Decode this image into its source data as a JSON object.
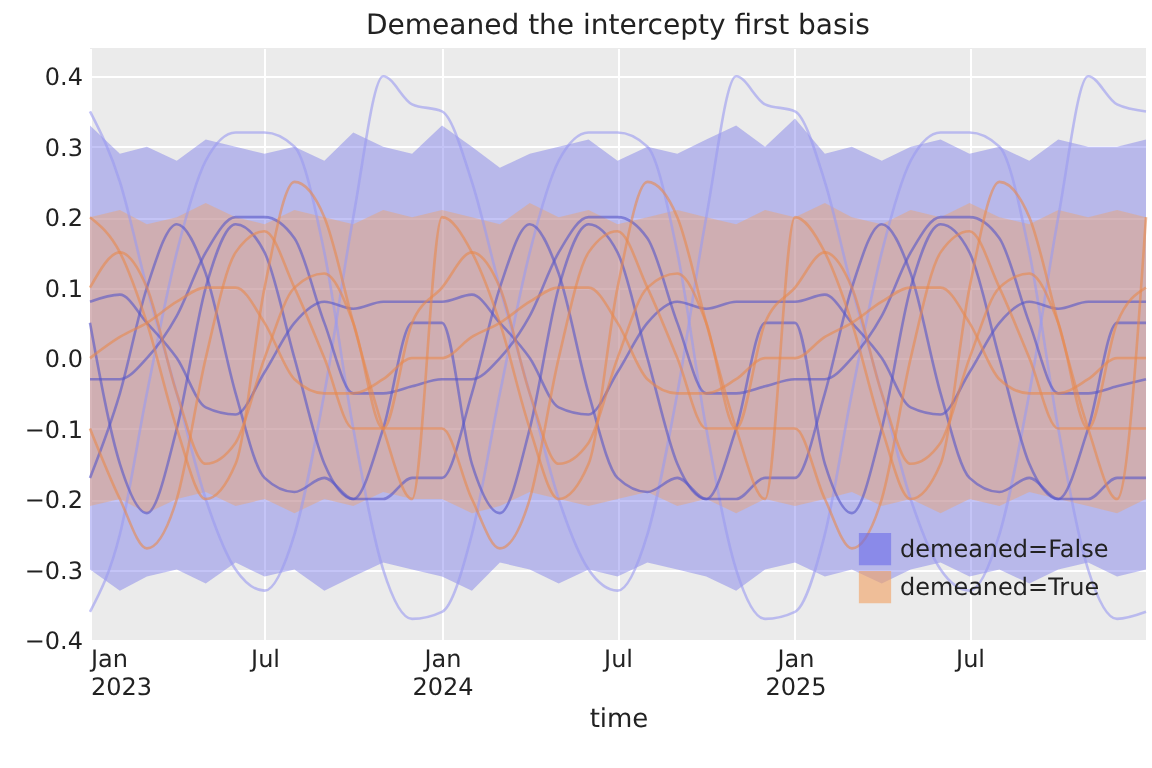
{
  "chart_data": {
    "type": "line",
    "title": "Demeaned the intercepty first basis",
    "xlabel": "time",
    "x": [
      "2023-01-01",
      "2023-02-01",
      "2023-03-01",
      "2023-04-01",
      "2023-05-01",
      "2023-06-01",
      "2023-07-01",
      "2023-08-01",
      "2023-09-01",
      "2023-10-01",
      "2023-11-01",
      "2023-12-01",
      "2024-01-01",
      "2024-02-01",
      "2024-03-01",
      "2024-04-01",
      "2024-05-01",
      "2024-06-01",
      "2024-07-01",
      "2024-08-01",
      "2024-09-01",
      "2024-10-01",
      "2024-11-01",
      "2024-12-01",
      "2025-01-01",
      "2025-02-01",
      "2025-03-01",
      "2025-04-01",
      "2025-05-01",
      "2025-06-01",
      "2025-07-01",
      "2025-08-01",
      "2025-09-01",
      "2025-10-01",
      "2025-11-01",
      "2025-12-01",
      "2025-12-31"
    ],
    "xlim": [
      "2023-01-01",
      "2025-12-31"
    ],
    "xticks": [
      {
        "value": "2023-01-01",
        "label": "Jan\n2023"
      },
      {
        "value": "2023-07-01",
        "label": "Jul"
      },
      {
        "value": "2024-01-01",
        "label": "Jan\n2024"
      },
      {
        "value": "2024-07-01",
        "label": "Jul"
      },
      {
        "value": "2025-01-01",
        "label": "Jan\n2025"
      },
      {
        "value": "2025-07-01",
        "label": "Jul"
      }
    ],
    "ylim": [
      -0.4,
      0.44
    ],
    "yticks": [
      {
        "value": -0.4,
        "label": "−0.4"
      },
      {
        "value": -0.3,
        "label": "−0.3"
      },
      {
        "value": -0.2,
        "label": "−0.2"
      },
      {
        "value": -0.1,
        "label": "−0.1"
      },
      {
        "value": 0.0,
        "label": "0.0"
      },
      {
        "value": 0.1,
        "label": "0.1"
      },
      {
        "value": 0.2,
        "label": "0.2"
      },
      {
        "value": 0.3,
        "label": "0.3"
      },
      {
        "value": 0.4,
        "label": "0.4"
      }
    ],
    "grid": true,
    "legend": "bottom right",
    "series": [
      {
        "type": "area",
        "name": "demeaned=False",
        "color": "#6b6be8",
        "values": [
          null,
          null,
          null,
          null,
          null,
          null,
          null,
          null,
          null,
          null,
          null,
          null,
          null,
          null,
          null,
          null,
          null,
          null,
          null,
          null,
          null,
          null,
          null,
          null,
          null,
          null,
          null,
          null,
          null,
          null,
          null,
          null,
          null,
          null,
          null,
          null,
          null
        ],
        "upper": [
          0.33,
          0.29,
          0.3,
          0.28,
          0.31,
          0.3,
          0.29,
          0.3,
          0.28,
          0.32,
          0.3,
          0.29,
          0.33,
          0.3,
          0.27,
          0.29,
          0.3,
          0.31,
          0.28,
          0.3,
          0.29,
          0.31,
          0.33,
          0.3,
          0.34,
          0.29,
          0.3,
          0.28,
          0.3,
          0.31,
          0.29,
          0.3,
          0.28,
          0.31,
          0.3,
          0.3,
          0.31
        ],
        "lower": [
          -0.3,
          -0.33,
          -0.31,
          -0.3,
          -0.32,
          -0.29,
          -0.31,
          -0.3,
          -0.33,
          -0.31,
          -0.29,
          -0.3,
          -0.31,
          -0.33,
          -0.29,
          -0.3,
          -0.32,
          -0.3,
          -0.31,
          -0.29,
          -0.3,
          -0.31,
          -0.33,
          -0.3,
          -0.29,
          -0.31,
          -0.3,
          -0.32,
          -0.3,
          -0.29,
          -0.31,
          -0.3,
          -0.32,
          -0.3,
          -0.29,
          -0.31,
          -0.3
        ]
      },
      {
        "type": "area",
        "name": "demeaned=True",
        "color": "#f2a060",
        "values": [
          null,
          null,
          null,
          null,
          null,
          null,
          null,
          null,
          null,
          null,
          null,
          null,
          null,
          null,
          null,
          null,
          null,
          null,
          null,
          null,
          null,
          null,
          null,
          null,
          null,
          null,
          null,
          null,
          null,
          null,
          null,
          null,
          null,
          null,
          null,
          null,
          null
        ],
        "upper": [
          0.2,
          0.21,
          0.19,
          0.2,
          0.22,
          0.2,
          0.19,
          0.21,
          0.2,
          0.19,
          0.21,
          0.2,
          0.21,
          0.2,
          0.19,
          0.22,
          0.2,
          0.21,
          0.19,
          0.2,
          0.21,
          0.2,
          0.19,
          0.21,
          0.2,
          0.22,
          0.2,
          0.19,
          0.21,
          0.2,
          0.22,
          0.2,
          0.19,
          0.21,
          0.2,
          0.21,
          0.2
        ],
        "lower": [
          -0.21,
          -0.2,
          -0.22,
          -0.2,
          -0.19,
          -0.21,
          -0.2,
          -0.22,
          -0.2,
          -0.21,
          -0.19,
          -0.2,
          -0.2,
          -0.22,
          -0.21,
          -0.19,
          -0.2,
          -0.21,
          -0.2,
          -0.19,
          -0.21,
          -0.2,
          -0.22,
          -0.2,
          -0.21,
          -0.2,
          -0.19,
          -0.21,
          -0.2,
          -0.22,
          -0.2,
          -0.21,
          -0.19,
          -0.2,
          -0.21,
          -0.22,
          -0.2
        ]
      },
      {
        "color": "#9a9af0",
        "values": [
          -0.36,
          -0.25,
          -0.05,
          0.15,
          0.28,
          0.32,
          0.32,
          0.3,
          0.15,
          -0.1,
          -0.3,
          -0.37,
          -0.36,
          -0.25,
          -0.05,
          0.15,
          0.28,
          0.32,
          0.32,
          0.3,
          0.15,
          -0.1,
          -0.3,
          -0.37,
          -0.36,
          -0.25,
          -0.05,
          0.15,
          0.28,
          0.32,
          0.32,
          0.3,
          0.15,
          -0.1,
          -0.3,
          -0.37,
          -0.36
        ]
      },
      {
        "color": "#9a9af0",
        "values": [
          0.35,
          0.25,
          0.1,
          -0.05,
          -0.2,
          -0.3,
          -0.33,
          -0.25,
          -0.05,
          0.2,
          0.4,
          0.36,
          0.35,
          0.25,
          0.1,
          -0.05,
          -0.2,
          -0.3,
          -0.33,
          -0.25,
          -0.05,
          0.2,
          0.4,
          0.36,
          0.35,
          0.25,
          0.1,
          -0.05,
          -0.2,
          -0.3,
          -0.33,
          -0.25,
          -0.05,
          0.2,
          0.4,
          0.36,
          0.35
        ]
      },
      {
        "color": "#5555c8",
        "values": [
          0.05,
          -0.15,
          -0.22,
          -0.1,
          0.1,
          0.19,
          0.15,
          0.0,
          -0.15,
          -0.2,
          -0.1,
          0.05,
          0.05,
          -0.15,
          -0.22,
          -0.1,
          0.1,
          0.19,
          0.15,
          0.0,
          -0.15,
          -0.2,
          -0.1,
          0.05,
          0.05,
          -0.15,
          -0.22,
          -0.1,
          0.1,
          0.19,
          0.15,
          0.0,
          -0.15,
          -0.2,
          -0.1,
          0.05,
          0.05
        ]
      },
      {
        "color": "#5555c8",
        "values": [
          0.08,
          0.09,
          0.05,
          0.0,
          -0.07,
          -0.08,
          -0.02,
          0.05,
          0.08,
          0.07,
          0.08,
          0.08,
          0.08,
          0.09,
          0.05,
          0.0,
          -0.07,
          -0.08,
          -0.02,
          0.05,
          0.08,
          0.07,
          0.08,
          0.08,
          0.08,
          0.09,
          0.05,
          0.0,
          -0.07,
          -0.08,
          -0.02,
          0.05,
          0.08,
          0.07,
          0.08,
          0.08,
          0.08
        ]
      },
      {
        "color": "#5555c8",
        "values": [
          -0.03,
          -0.03,
          0.0,
          0.06,
          0.15,
          0.2,
          0.2,
          0.17,
          0.05,
          -0.05,
          -0.05,
          -0.04,
          -0.03,
          -0.03,
          0.0,
          0.06,
          0.15,
          0.2,
          0.2,
          0.17,
          0.05,
          -0.05,
          -0.05,
          -0.04,
          -0.03,
          -0.03,
          0.0,
          0.06,
          0.15,
          0.2,
          0.2,
          0.17,
          0.05,
          -0.05,
          -0.05,
          -0.04,
          -0.03
        ]
      },
      {
        "color": "#5555c8",
        "values": [
          -0.17,
          -0.05,
          0.1,
          0.19,
          0.12,
          -0.05,
          -0.17,
          -0.19,
          -0.17,
          -0.2,
          -0.2,
          -0.17,
          -0.17,
          -0.05,
          0.1,
          0.19,
          0.12,
          -0.05,
          -0.17,
          -0.19,
          -0.17,
          -0.2,
          -0.2,
          -0.17,
          -0.17,
          -0.05,
          0.1,
          0.19,
          0.12,
          -0.05,
          -0.17,
          -0.19,
          -0.17,
          -0.2,
          -0.2,
          -0.17,
          -0.17
        ]
      },
      {
        "color": "#e8894d",
        "values": [
          0.2,
          0.15,
          0.05,
          -0.1,
          -0.2,
          -0.15,
          0.1,
          0.25,
          0.2,
          0.05,
          -0.1,
          -0.2,
          0.2,
          0.15,
          0.05,
          -0.1,
          -0.2,
          -0.15,
          0.1,
          0.25,
          0.2,
          0.05,
          -0.1,
          -0.2,
          0.2,
          0.15,
          0.05,
          -0.1,
          -0.2,
          -0.15,
          0.1,
          0.25,
          0.2,
          0.05,
          -0.1,
          -0.2,
          0.2
        ]
      },
      {
        "color": "#e8894d",
        "values": [
          -0.1,
          -0.2,
          -0.27,
          -0.2,
          0.0,
          0.15,
          0.18,
          0.1,
          0.0,
          -0.1,
          -0.1,
          -0.1,
          -0.1,
          -0.2,
          -0.27,
          -0.2,
          0.0,
          0.15,
          0.18,
          0.1,
          0.0,
          -0.1,
          -0.1,
          -0.1,
          -0.1,
          -0.2,
          -0.27,
          -0.2,
          0.0,
          0.15,
          0.18,
          0.1,
          0.0,
          -0.1,
          -0.1,
          -0.1,
          -0.1
        ]
      },
      {
        "color": "#e8894d",
        "values": [
          0.0,
          0.03,
          0.05,
          0.08,
          0.1,
          0.1,
          0.05,
          -0.03,
          -0.05,
          -0.05,
          -0.03,
          0.0,
          0.0,
          0.03,
          0.05,
          0.08,
          0.1,
          0.1,
          0.05,
          -0.03,
          -0.05,
          -0.05,
          -0.03,
          0.0,
          0.0,
          0.03,
          0.05,
          0.08,
          0.1,
          0.1,
          0.05,
          -0.03,
          -0.05,
          -0.05,
          -0.03,
          0.0,
          0.0
        ]
      },
      {
        "color": "#e8894d",
        "values": [
          0.1,
          0.15,
          0.1,
          -0.05,
          -0.15,
          -0.12,
          0.0,
          0.1,
          0.12,
          0.05,
          -0.1,
          0.05,
          0.1,
          0.15,
          0.1,
          -0.05,
          -0.15,
          -0.12,
          0.0,
          0.1,
          0.12,
          0.05,
          -0.1,
          0.05,
          0.1,
          0.15,
          0.1,
          -0.05,
          -0.15,
          -0.12,
          0.0,
          0.1,
          0.12,
          0.05,
          -0.1,
          0.05,
          0.1
        ]
      }
    ]
  }
}
